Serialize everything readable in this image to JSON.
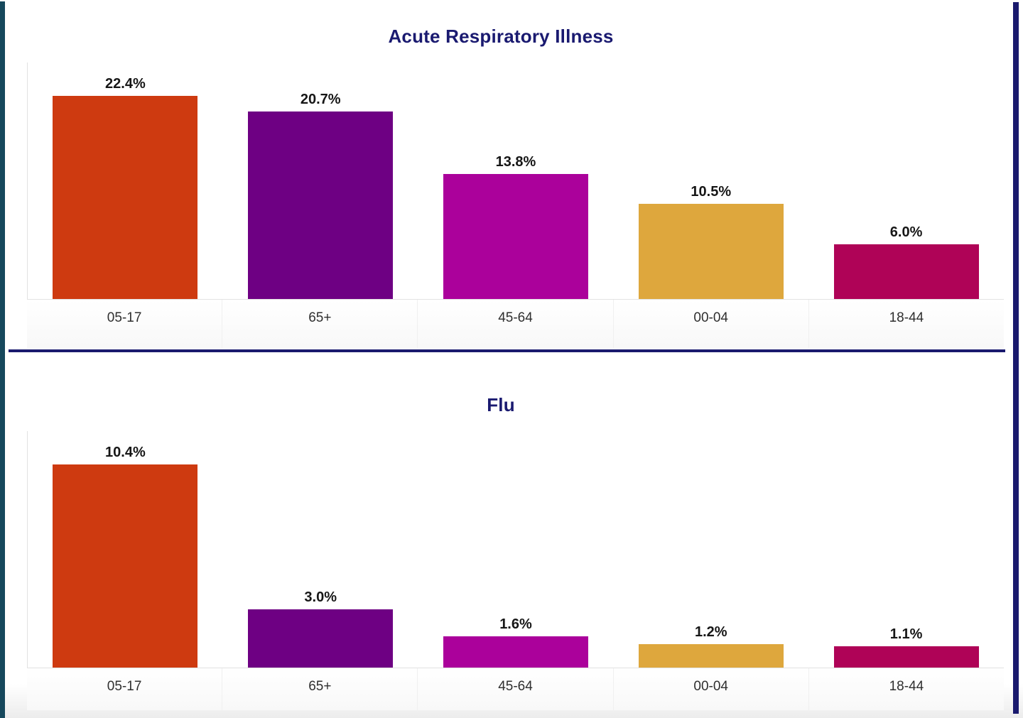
{
  "page": {
    "background": "#FFFFFF",
    "accents": {
      "left_strip_color": "#16485C",
      "right_strip_color": "#1A1A6E",
      "divider_color": "#1A1A6E"
    },
    "title_color": "#1A1A70",
    "value_label_color": "#161616",
    "axis_label_color": "#2F2F2F",
    "gridline_color": "#E2E2E2"
  },
  "bar_colors": [
    "#CE3A10",
    "#6E0083",
    "#AB019B",
    "#DEA73D",
    "#AF0357"
  ],
  "chart_data": [
    {
      "type": "bar",
      "title": "Acute Respiratory Illness",
      "categories": [
        "05-17",
        "65+",
        "45-64",
        "00-04",
        "18-44"
      ],
      "values": [
        22.4,
        20.7,
        13.8,
        10.5,
        6.0
      ],
      "value_labels": [
        "22.4%",
        "20.7%",
        "13.8%",
        "10.5%",
        "6.0%"
      ],
      "xlabel": "",
      "ylabel": "",
      "y_axis_visible": false,
      "grid": false,
      "data_labels_visible": true,
      "legend": "none",
      "sort": "descending"
    },
    {
      "type": "bar",
      "title": "Flu",
      "categories": [
        "05-17",
        "65+",
        "45-64",
        "00-04",
        "18-44"
      ],
      "values": [
        10.4,
        3.0,
        1.6,
        1.2,
        1.1
      ],
      "value_labels": [
        "10.4%",
        "3.0%",
        "1.6%",
        "1.2%",
        "1.1%"
      ],
      "xlabel": "",
      "ylabel": "",
      "y_axis_visible": false,
      "grid": false,
      "data_labels_visible": true,
      "legend": "none",
      "sort": "descending"
    }
  ]
}
